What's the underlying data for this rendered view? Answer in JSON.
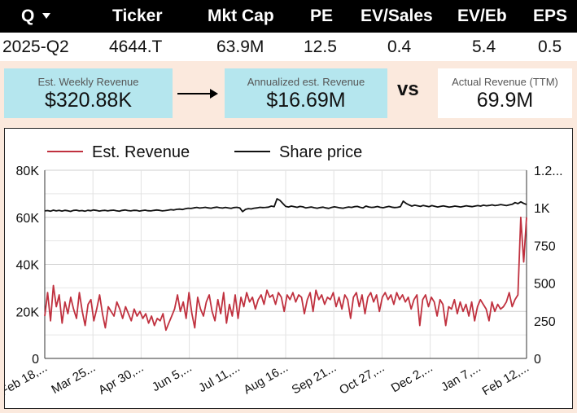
{
  "header": {
    "q_label": "Q",
    "ticker_label": "Ticker",
    "mktcap_label": "Mkt Cap",
    "pe_label": "PE",
    "evsales_label": "EV/Sales",
    "eveb_label": "EV/Eb",
    "eps_label": "EPS",
    "caret_icon": "caret-down-icon"
  },
  "row": {
    "q": "2025-Q2",
    "ticker": "4644.T",
    "mktcap": "63.9M",
    "pe": "12.5",
    "evsales": "0.4",
    "eveb": "5.4",
    "eps": "0.5"
  },
  "cards": {
    "weekly_label": "Est. Weekly Revenue",
    "weekly_value": "$320.88K",
    "annual_label": "Annualized est. Revenue",
    "annual_value": "$16.69M",
    "vs": "vs",
    "actual_label": "Actual Revenue (TTM)",
    "actual_value": "69.9M",
    "arrow_icon": "arrow-right-icon"
  },
  "chart_data": {
    "type": "line",
    "title": "",
    "xlabel": "",
    "ylabel": "",
    "legend_position": "top",
    "grid": true,
    "x_ticks": [
      "Feb 18,...",
      "Mar 25...",
      "Apr 30,...",
      "Jun 5,...",
      "Jul 11,...",
      "Aug 16...",
      "Sep 21...",
      "Oct 27,...",
      "Dec 2,...",
      "Jan 7,...",
      "Feb 12,..."
    ],
    "y_left": {
      "ticks": [
        "0",
        "20K",
        "40K",
        "60K",
        "80K"
      ],
      "range": [
        0,
        80000
      ]
    },
    "y_right": {
      "ticks": [
        "0",
        "250",
        "500",
        "750",
        "1K",
        "1.2..."
      ],
      "range": [
        0,
        1250
      ]
    },
    "series": [
      {
        "name": "Est. Revenue",
        "axis": "left",
        "color": "#c0313f",
        "values": [
          18000,
          28000,
          16000,
          31000,
          22000,
          27000,
          15000,
          24000,
          19000,
          26000,
          21000,
          17000,
          28000,
          20000,
          14000,
          23000,
          25000,
          16000,
          21000,
          27000,
          19000,
          13000,
          22000,
          20000,
          18000,
          24000,
          21000,
          17000,
          22000,
          19000,
          16000,
          21000,
          18000,
          20000,
          17000,
          19000,
          15000,
          18000,
          14000,
          17000,
          16000,
          19000,
          12000,
          15000,
          18000,
          21000,
          27000,
          20000,
          24000,
          17000,
          28000,
          19000,
          13000,
          26000,
          21000,
          18000,
          24000,
          27000,
          20000,
          16000,
          25000,
          19000,
          28000,
          15000,
          23000,
          18000,
          27000,
          17000,
          26000,
          22000,
          28000,
          24000,
          26000,
          21000,
          25000,
          27000,
          23000,
          29000,
          26000,
          27000,
          23000,
          28000,
          26000,
          20000,
          27000,
          25000,
          28000,
          24000,
          27000,
          26000,
          19000,
          25000,
          28000,
          20000,
          29000,
          25000,
          27000,
          23000,
          26000,
          25000,
          28000,
          22000,
          26000,
          21000,
          27000,
          25000,
          17000,
          26000,
          28000,
          22000,
          27000,
          19000,
          26000,
          28000,
          24000,
          27000,
          20000,
          26000,
          28000,
          25000,
          27000,
          23000,
          28000,
          25000,
          27000,
          24000,
          26000,
          21000,
          25000,
          27000,
          14000,
          25000,
          27000,
          22000,
          26000,
          24000,
          18000,
          25000,
          23000,
          14000,
          22000,
          21000,
          25000,
          19000,
          24000,
          20000,
          23000,
          18000,
          24000,
          16000,
          22000,
          25000,
          23000,
          21000,
          16000,
          24000,
          20000,
          23000,
          21000,
          22000,
          24000,
          28000,
          22000,
          25000,
          27000,
          60000,
          41000,
          60000
        ]
      },
      {
        "name": "Share price",
        "axis": "right",
        "color": "#111111",
        "values": [
          980,
          982,
          978,
          985,
          980,
          983,
          979,
          984,
          981,
          977,
          983,
          985,
          980,
          982,
          978,
          984,
          981,
          986,
          983,
          979,
          982,
          984,
          980,
          983,
          985,
          981,
          978,
          983,
          986,
          982,
          980,
          984,
          983,
          979,
          982,
          985,
          981,
          980,
          983,
          986,
          984,
          980,
          982,
          985,
          988,
          986,
          990,
          992,
          989,
          994,
          998,
          996,
          1000,
          1003,
          999,
          1001,
          1004,
          1000,
          998,
          1002,
          1005,
          1001,
          999,
          1003,
          1000,
          997,
          1002,
          1004,
          1000,
          975,
          990,
          995,
          993,
          998,
          1000,
          1004,
          1002,
          1003,
          1005,
          1012,
          1008,
          1060,
          1050,
          1030,
          1010,
          1006,
          1012,
          1008,
          1004,
          1010,
          1007,
          1000,
          1003,
          1006,
          1001,
          998,
          1002,
          1005,
          1000,
          997,
          1003,
          1007,
          1004,
          1000,
          998,
          1002,
          1006,
          1003,
          1008,
          1010,
          1004,
          1000,
          1012,
          1006,
          1003,
          1005,
          1009,
          1004,
          1001,
          1006,
          1010,
          1005,
          1002,
          1004,
          1008,
          1045,
          1030,
          1020,
          1012,
          1018,
          1014,
          1010,
          1016,
          1012,
          1008,
          1015,
          1011,
          1006,
          1010,
          1013,
          1009,
          1005,
          1008,
          1012,
          1009,
          1006,
          1010,
          1014,
          1011,
          1008,
          1012,
          1015,
          1012,
          1018,
          1014,
          1016,
          1020,
          1015,
          1018,
          1022,
          1019,
          1015,
          1020,
          1024,
          1035,
          1028,
          1040,
          1030,
          1022
        ]
      }
    ]
  }
}
